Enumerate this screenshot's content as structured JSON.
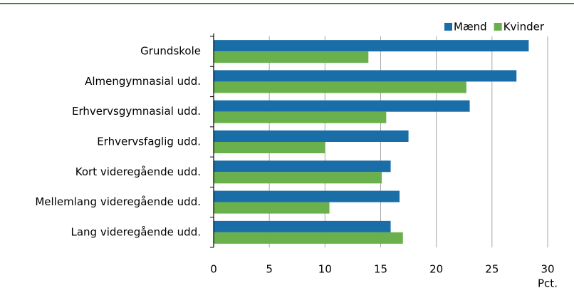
{
  "chart_data": {
    "type": "hbar",
    "categories": [
      "Grundskole",
      "Almengymnasial udd.",
      "Erhvervsgymnasial udd.",
      "Erhvervsfaglig udd.",
      "Kort videregående udd.",
      "Mellemlang videregående udd.",
      "Lang videregående udd."
    ],
    "series": [
      {
        "name": "Mænd",
        "color": "#1a6ea8",
        "values": [
          28.3,
          27.2,
          23.0,
          17.5,
          15.9,
          16.7,
          15.9
        ]
      },
      {
        "name": "Kvinder",
        "color": "#6ab04c",
        "values": [
          13.9,
          22.7,
          15.5,
          10.0,
          15.1,
          10.4,
          17.0
        ]
      }
    ],
    "x_label": "Pct.",
    "xlim": [
      0,
      30
    ],
    "xticks": [
      0,
      5,
      10,
      15,
      20,
      25,
      30
    ],
    "grid": true,
    "legend": "top-right"
  }
}
